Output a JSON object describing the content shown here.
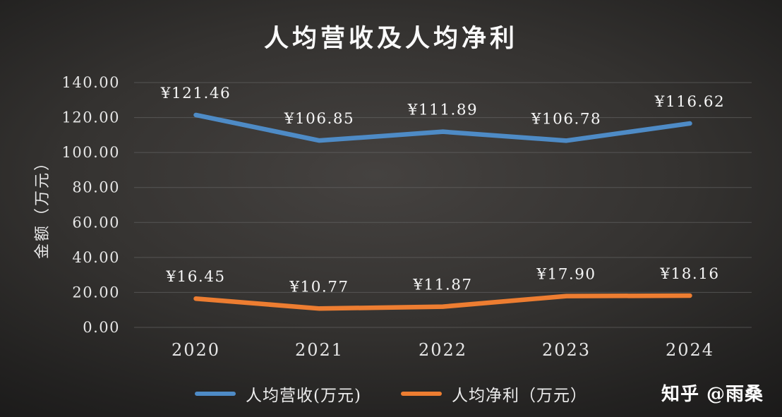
{
  "watermark": "知乎 @雨桑",
  "chart_data": {
    "type": "line",
    "title": "人均营收及人均净利",
    "ylabel": "金额（万元）",
    "categories": [
      "2020",
      "2021",
      "2022",
      "2023",
      "2024"
    ],
    "series": [
      {
        "name": "人均营收(万元)",
        "color": "#4E8BC6",
        "values": [
          121.46,
          106.85,
          111.89,
          106.78,
          116.62
        ],
        "labels": [
          "¥121.46",
          "¥106.85",
          "¥111.89",
          "¥106.78",
          "¥116.62"
        ]
      },
      {
        "name": "人均净利（万元）",
        "color": "#ED7D31",
        "values": [
          16.45,
          10.77,
          11.87,
          17.9,
          18.16
        ],
        "labels": [
          "¥16.45",
          "¥10.77",
          "¥11.87",
          "¥17.90",
          "¥18.16"
        ]
      }
    ],
    "ylim": [
      0,
      140
    ],
    "ytick_step": 20,
    "ytick_labels": [
      "0.00",
      "20.00",
      "40.00",
      "60.00",
      "80.00",
      "100.00",
      "120.00",
      "140.00"
    ],
    "grid": true,
    "grid_color": "#6a6a6a",
    "legend_position": "bottom"
  }
}
